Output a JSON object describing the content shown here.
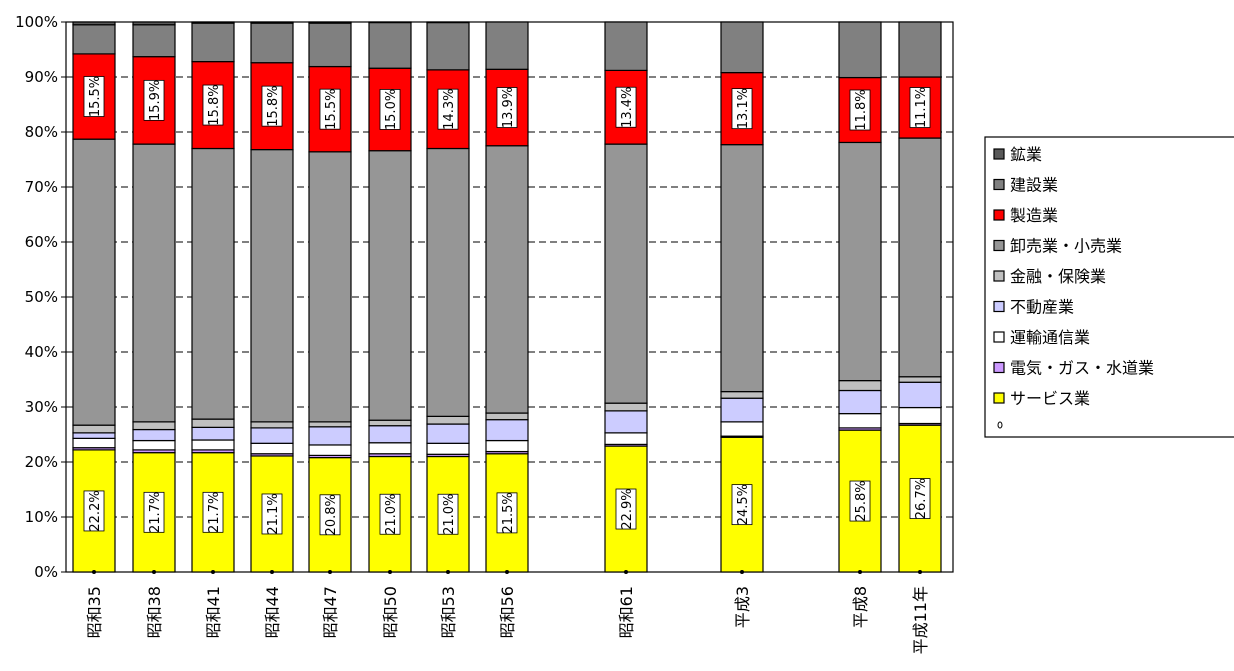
{
  "chart_data": {
    "type": "bar",
    "stacked": true,
    "normalized": true,
    "title": "",
    "xlabel": "",
    "ylabel": "",
    "ylim": [
      0,
      100
    ],
    "y_ticks": [
      "0%",
      "10%",
      "20%",
      "30%",
      "40%",
      "50%",
      "60%",
      "70%",
      "80%",
      "90%",
      "100%"
    ],
    "grid": true,
    "legend_position": "right",
    "categories": [
      "昭和35",
      "昭和38",
      "昭和41",
      "昭和44",
      "昭和47",
      "昭和50",
      "昭和53",
      "昭和56",
      "昭和61",
      "平成3",
      "平成8",
      "平成11年"
    ],
    "series": [
      {
        "name": "サービス業",
        "color": "#ffff00",
        "values": [
          22.2,
          21.7,
          21.7,
          21.1,
          20.8,
          21.0,
          21.0,
          21.5,
          22.9,
          24.5,
          25.8,
          26.7
        ],
        "value_labels": [
          "22.2%",
          "21.7%",
          "21.7%",
          "21.1%",
          "20.8%",
          "21.0%",
          "21.0%",
          "21.5%",
          "22.9%",
          "24.5%",
          "25.8%",
          "26.7%"
        ]
      },
      {
        "name": "電気・ガス・水道業",
        "color": "#cc99ff",
        "values": [
          0.4,
          0.5,
          0.5,
          0.4,
          0.4,
          0.5,
          0.4,
          0.4,
          0.3,
          0.2,
          0.4,
          0.3
        ]
      },
      {
        "name": "運輸通信業",
        "color": "#ffffff",
        "values": [
          1.7,
          1.7,
          1.8,
          1.9,
          1.9,
          2.0,
          2.0,
          2.0,
          2.1,
          2.6,
          2.6,
          2.9
        ]
      },
      {
        "name": "不動産業",
        "color": "#ccccff",
        "values": [
          1.0,
          2.0,
          2.3,
          2.8,
          3.3,
          3.1,
          3.5,
          3.8,
          4.0,
          4.3,
          4.2,
          4.6
        ]
      },
      {
        "name": "金融・保険業",
        "color": "#c0c0c0",
        "values": [
          1.4,
          1.4,
          1.5,
          1.1,
          0.9,
          1.0,
          1.4,
          1.2,
          1.4,
          1.2,
          1.8,
          1.0
        ]
      },
      {
        "name": "卸売業・小売業",
        "color": "#969696",
        "values": [
          52.0,
          50.5,
          49.2,
          49.5,
          49.1,
          49.0,
          48.7,
          48.6,
          47.1,
          44.9,
          43.3,
          43.4
        ]
      },
      {
        "name": "製造業",
        "color": "#ff0000",
        "values": [
          15.5,
          15.9,
          15.8,
          15.8,
          15.5,
          15.0,
          14.3,
          13.9,
          13.4,
          13.1,
          11.8,
          11.1
        ],
        "value_labels": [
          "15.5%",
          "15.9%",
          "15.8%",
          "15.8%",
          "15.5%",
          "15.0%",
          "14.3%",
          "13.9%",
          "13.4%",
          "13.1%",
          "11.8%",
          "11.1%"
        ]
      },
      {
        "name": "建設業",
        "color": "#808080",
        "values": [
          5.3,
          5.8,
          7.0,
          7.2,
          7.9,
          8.3,
          8.6,
          8.6,
          8.8,
          9.2,
          10.1,
          10.0
        ]
      },
      {
        "name": "鉱業",
        "color": "#595959",
        "values": [
          0.5,
          0.5,
          0.2,
          0.2,
          0.2,
          0.1,
          0.1,
          0.0,
          0.0,
          0.0,
          0.0,
          0.0
        ]
      }
    ],
    "legend_order": [
      "鉱業",
      "建設業",
      "製造業",
      "卸売業・小売業",
      "金融・保険業",
      "不動産業",
      "運輸通信業",
      "電気・ガス・水道業",
      "サービス業"
    ]
  }
}
